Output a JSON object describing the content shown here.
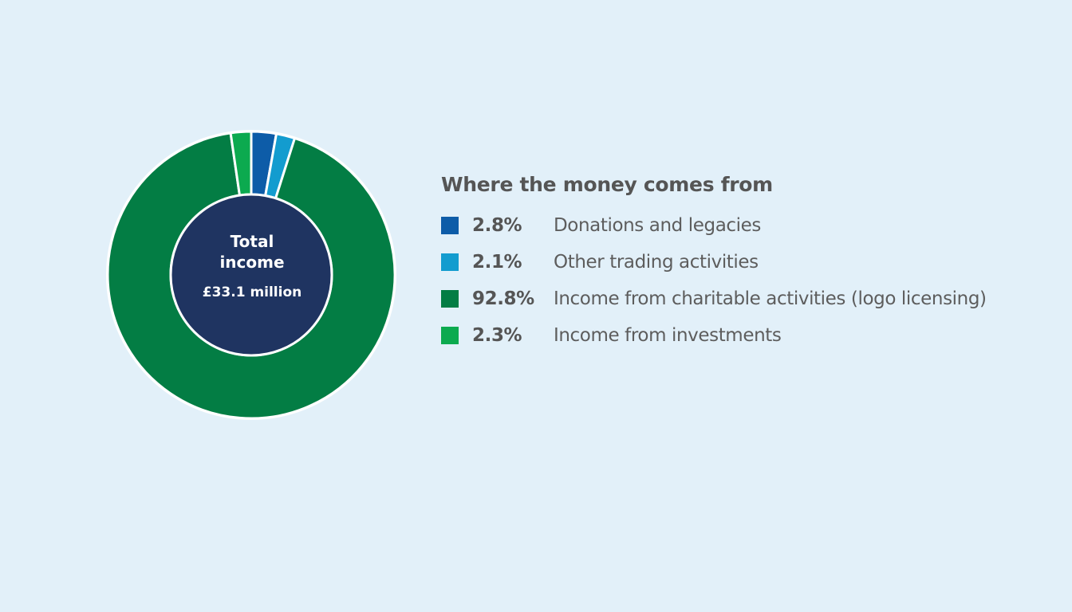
{
  "chart_data": {
    "type": "pie",
    "title": "Where the money comes from",
    "center": {
      "title": "Total income",
      "value": "£33.1 million"
    },
    "categories": [
      "Donations and legacies",
      "Other trading activities",
      "Income from charitable activities (logo licensing)",
      "Income from investments"
    ],
    "values": [
      2.8,
      2.1,
      92.8,
      2.3
    ],
    "value_labels": [
      "2.8%",
      "2.1%",
      "92.8%",
      "2.3%"
    ],
    "colors": [
      "#0d5ca8",
      "#139ccf",
      "#037d44",
      "#0caa4f"
    ],
    "center_color": "#1f3461",
    "legend": "right"
  }
}
